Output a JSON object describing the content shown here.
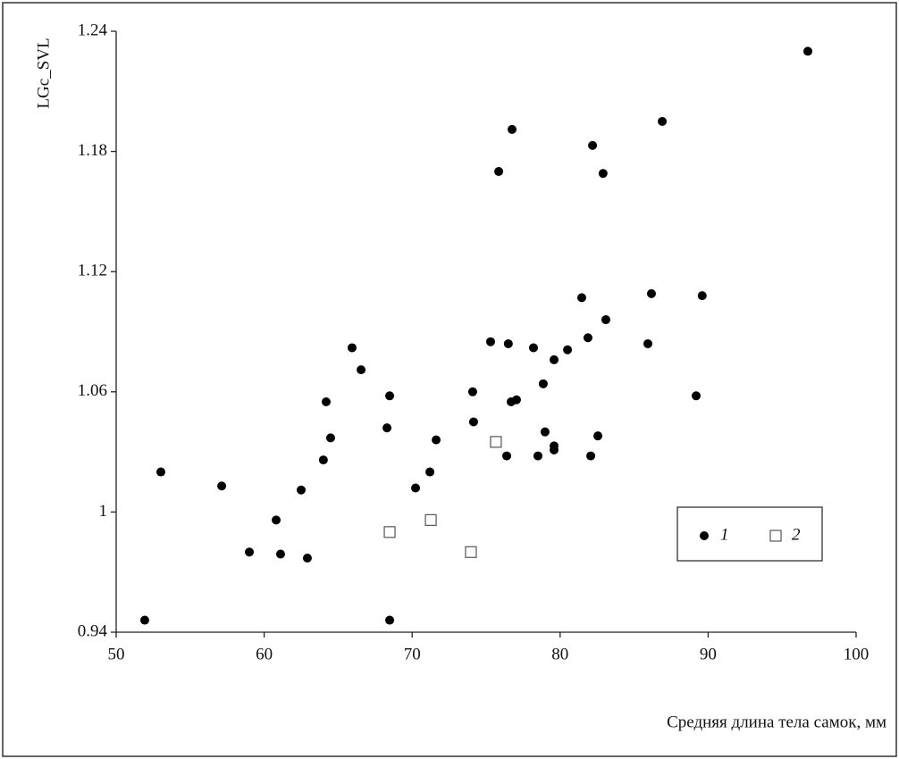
{
  "chart_data": {
    "type": "scatter",
    "xlabel": "Средняя длина тела самок, мм",
    "ylabel": "LGc_SVL",
    "xlim": [
      50,
      100
    ],
    "xticks": [
      50,
      60,
      70,
      80,
      90,
      100
    ],
    "ylim": [
      0.94,
      1.24
    ],
    "yticks": [
      0.94,
      1,
      1.06,
      1.12,
      1.18,
      1.24
    ],
    "grid": false,
    "legend": "lower right",
    "series": [
      {
        "name": "1",
        "color": "#000000",
        "marker": "circle",
        "x": [
          96.74,
          86.9,
          76.75,
          82.19,
          75.85,
          82.9,
          89.6,
          86.17,
          81.46,
          83.09,
          81.88,
          75.3,
          76.5,
          85.93,
          78.2,
          80.5,
          65.94,
          79.59,
          66.55,
          78.86,
          74.09,
          68.48,
          89.19,
          64.19,
          76.69,
          77.05,
          74.15,
          68.3,
          78.98,
          64.49,
          82.55,
          71.62,
          79.59,
          79.59,
          64.0,
          76.39,
          78.5,
          82.07,
          53.02,
          71.2,
          57.13,
          70.23,
          62.5,
          60.81,
          59.0,
          61.11,
          62.92,
          51.93,
          68.48
        ],
        "values": [
          1.23,
          1.195,
          1.191,
          1.183,
          1.17,
          1.169,
          1.108,
          1.109,
          1.107,
          1.096,
          1.087,
          1.085,
          1.084,
          1.084,
          1.082,
          1.081,
          1.082,
          1.076,
          1.071,
          1.064,
          1.06,
          1.058,
          1.058,
          1.055,
          1.055,
          1.056,
          1.045,
          1.042,
          1.04,
          1.037,
          1.038,
          1.036,
          1.033,
          1.031,
          1.026,
          1.028,
          1.028,
          1.028,
          1.02,
          1.02,
          1.013,
          1.012,
          1.011,
          0.996,
          0.98,
          0.979,
          0.977,
          0.946,
          0.946
        ]
      },
      {
        "name": "2",
        "color": "#555555",
        "marker": "square",
        "x": [
          75.66,
          71.26,
          68.48,
          73.97
        ],
        "values": [
          1.035,
          0.996,
          0.99,
          0.98
        ]
      }
    ]
  }
}
